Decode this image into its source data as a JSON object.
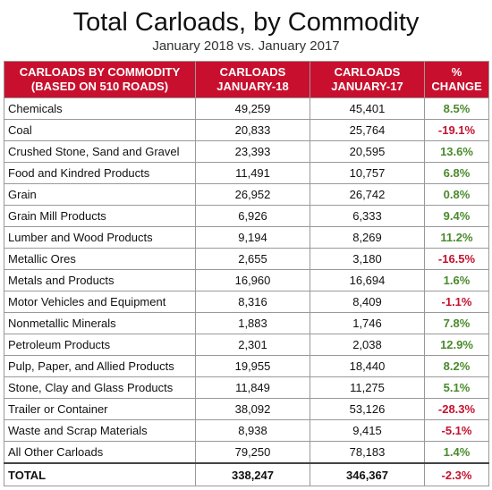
{
  "header": {
    "title": "Total Carloads, by Commodity",
    "subtitle": "January 2018 vs. January 2017"
  },
  "table": {
    "columns": [
      "CARLOADS BY COMMODITY\n(BASED ON 510 ROADS)",
      "CARLOADS\nJANUARY-18",
      "CARLOADS\nJANUARY-17",
      "%\nCHANGE"
    ],
    "rows": [
      [
        "Chemicals",
        "49,259",
        "45,401",
        "8.5%"
      ],
      [
        "Coal",
        "20,833",
        "25,764",
        "-19.1%"
      ],
      [
        "Crushed Stone, Sand and Gravel",
        "23,393",
        "20,595",
        "13.6%"
      ],
      [
        "Food and Kindred Products",
        "11,491",
        "10,757",
        "6.8%"
      ],
      [
        "Grain",
        "26,952",
        "26,742",
        "0.8%"
      ],
      [
        "Grain Mill Products",
        "6,926",
        "6,333",
        "9.4%"
      ],
      [
        "Lumber and Wood Products",
        "9,194",
        "8,269",
        "11.2%"
      ],
      [
        "Metallic Ores",
        "2,655",
        "3,180",
        "-16.5%"
      ],
      [
        "Metals and Products",
        "16,960",
        "16,694",
        "1.6%"
      ],
      [
        "Motor Vehicles and Equipment",
        "8,316",
        "8,409",
        "-1.1%"
      ],
      [
        "Nonmetallic Minerals",
        "1,883",
        "1,746",
        "7.8%"
      ],
      [
        "Petroleum Products",
        "2,301",
        "2,038",
        "12.9%"
      ],
      [
        "Pulp, Paper, and Allied Products",
        "19,955",
        "18,440",
        "8.2%"
      ],
      [
        "Stone, Clay and Glass Products",
        "11,849",
        "11,275",
        "5.1%"
      ],
      [
        "Trailer or Container",
        "38,092",
        "53,126",
        "-28.3%"
      ],
      [
        "Waste and Scrap Materials",
        "8,938",
        "9,415",
        "-5.1%"
      ],
      [
        "All Other Carloads",
        "79,250",
        "78,183",
        "1.4%"
      ]
    ],
    "total": [
      "TOTAL",
      "338,247",
      "346,367",
      "-2.3%"
    ]
  }
}
